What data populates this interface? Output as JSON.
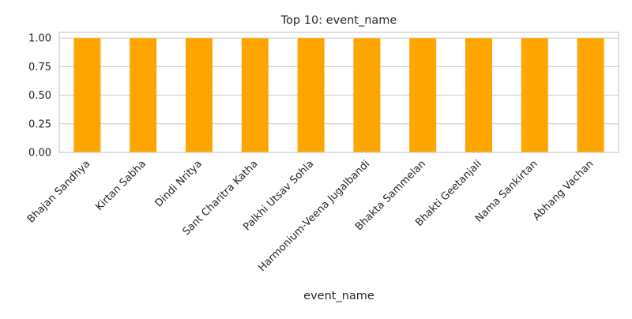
{
  "chart_data": {
    "type": "bar",
    "title": "Top 10: event_name",
    "xlabel": "event_name",
    "ylabel": "",
    "categories": [
      "Bhajan Sandhya",
      "Kirtan Sabha",
      "Dindi Nritya",
      "Sant Charitra Katha",
      "Palkhi Utsav Sohla",
      "Harmonium-Veena Jugalbandi",
      "Bhakta Sammelan",
      "Bhakti Geetanjali",
      "Nama Sankirtan",
      "Abhang Vachan"
    ],
    "values": [
      1,
      1,
      1,
      1,
      1,
      1,
      1,
      1,
      1,
      1
    ],
    "ylim": [
      0,
      1.05
    ],
    "yticks": [
      0.0,
      0.25,
      0.5,
      0.75,
      1.0
    ],
    "ytick_labels": [
      "0.00",
      "0.25",
      "0.50",
      "0.75",
      "1.00"
    ],
    "grid": "horizontal",
    "legend": "none",
    "bar_color": "#FFA500",
    "grid_color": "#CCCCCC",
    "axis_color": "#CCCCCC",
    "background": "#FFFFFF"
  }
}
